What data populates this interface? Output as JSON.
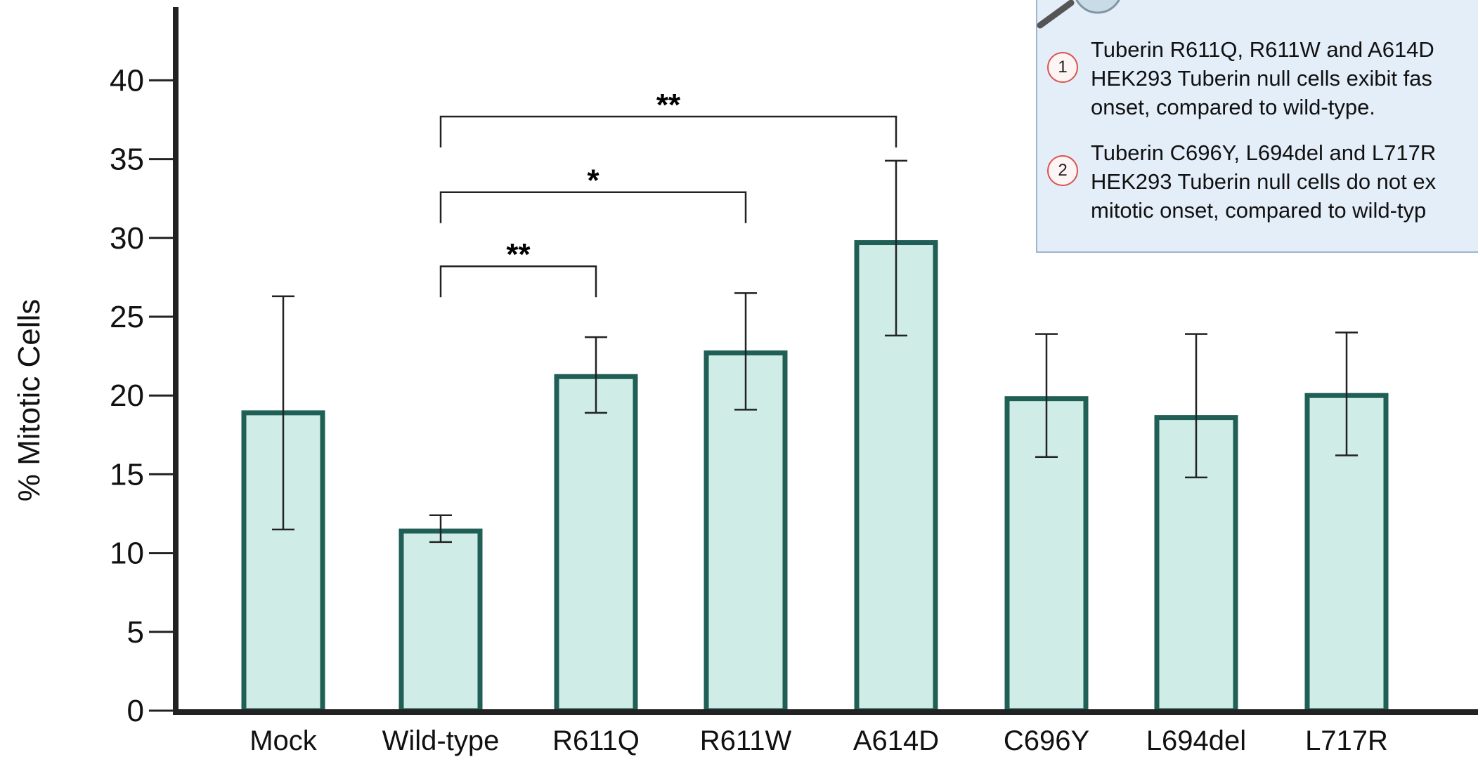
{
  "chart_data": {
    "type": "bar",
    "title": "",
    "xlabel": "",
    "ylabel": "% Mitotic Cells",
    "ylim": [
      0,
      45
    ],
    "yticks": [
      0,
      5,
      10,
      15,
      20,
      25,
      30,
      35,
      40
    ],
    "categories": [
      "Mock",
      "Wild-type",
      "R611Q",
      "R611W",
      "A614D",
      "C696Y",
      "L694del",
      "L717R"
    ],
    "values": [
      18.9,
      11.4,
      21.2,
      22.7,
      29.7,
      19.8,
      18.6,
      20.0
    ],
    "error_low": [
      11.5,
      10.7,
      18.9,
      19.1,
      23.8,
      16.1,
      14.8,
      16.2
    ],
    "error_high": [
      26.3,
      12.4,
      23.7,
      26.5,
      34.9,
      23.9,
      23.9,
      24.0
    ],
    "significance": [
      {
        "from": "Wild-type",
        "to": "R611Q",
        "label": "**",
        "y": 28.2
      },
      {
        "from": "Wild-type",
        "to": "R611W",
        "label": "*",
        "y": 32.9
      },
      {
        "from": "Wild-type",
        "to": "A614D",
        "label": "**",
        "y": 37.7
      }
    ],
    "bar_fill": "#d0ece7",
    "bar_stroke": "#1f5f56",
    "grid": false,
    "legend": "none"
  },
  "notes": [
    {
      "badge": "1",
      "text": "Tuberin R611Q, R611W and A614D\nHEK293 Tuberin null cells exibit fas\nonset, compared to wild-type."
    },
    {
      "badge": "2",
      "text": "Tuberin C696Y, L694del and L717R\nHEK293 Tuberin null cells do not ex\nmitotic onset, compared to wild-typ"
    }
  ],
  "colors": {
    "notes_background": "#e4eef8",
    "notes_border": "#9fb6cf",
    "badge_border": "#d9534f"
  }
}
